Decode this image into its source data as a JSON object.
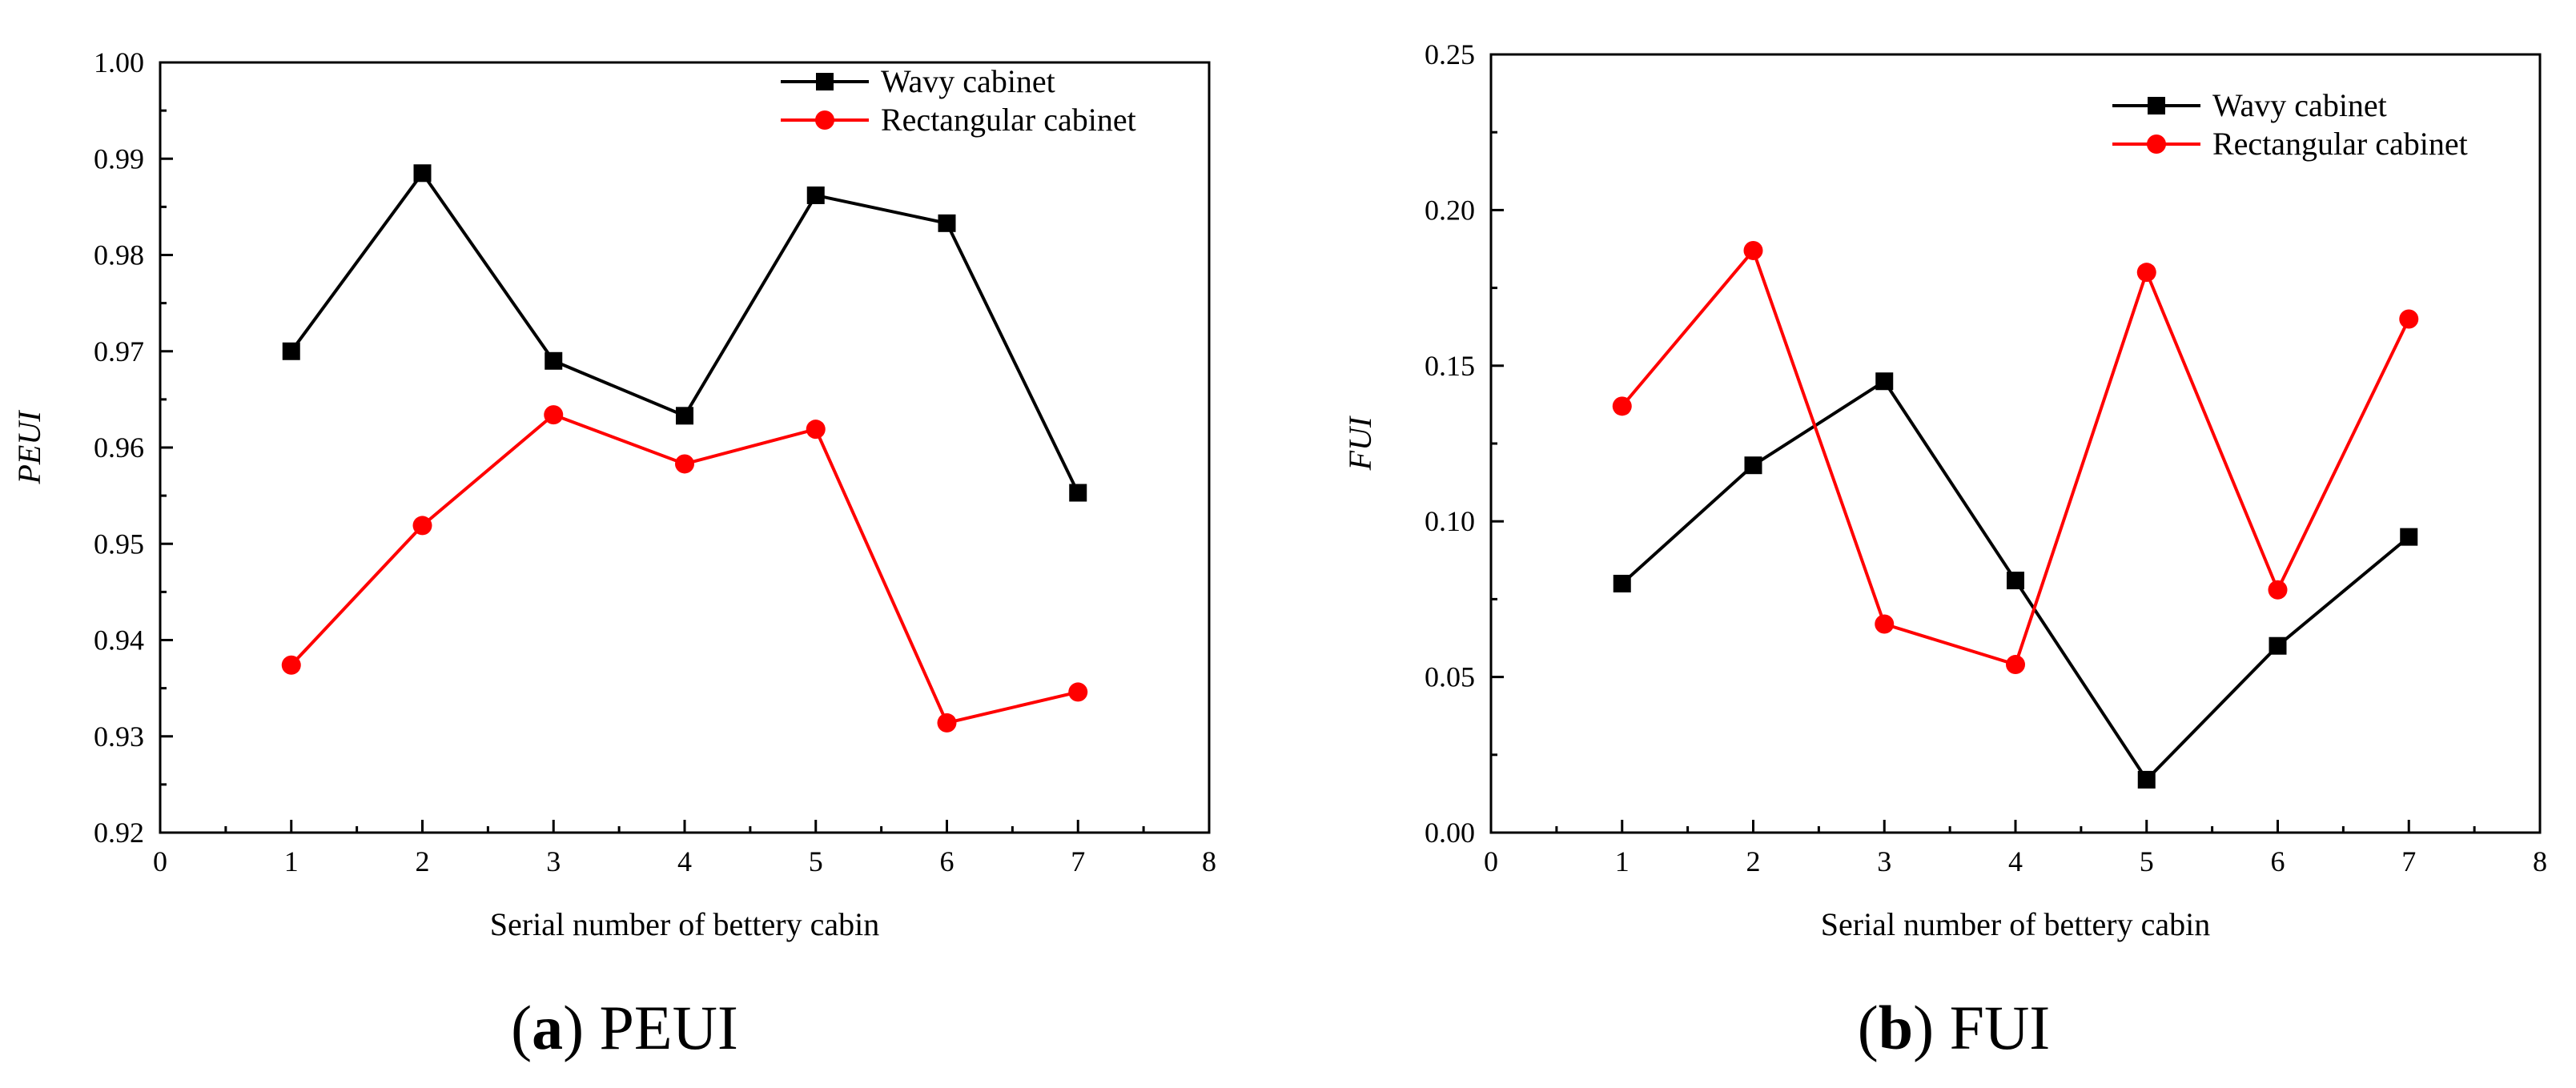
{
  "chart_data": [
    {
      "type": "line",
      "caption_letter": "a",
      "caption_text": "PEUI",
      "xlabel": "Serial number of bettery cabin",
      "ylabel": "PEUI",
      "xlim": [
        0,
        8
      ],
      "ylim": [
        0.92,
        1.0
      ],
      "x_ticks": [
        "0",
        "1",
        "2",
        "3",
        "4",
        "5",
        "6",
        "7",
        "8"
      ],
      "y_ticks": [
        "0.92",
        "0.93",
        "0.94",
        "0.95",
        "0.96",
        "0.97",
        "0.98",
        "0.99",
        "1.00"
      ],
      "legend_position": "top-right",
      "grid": false,
      "x": [
        1,
        2,
        3,
        4,
        5,
        6,
        7
      ],
      "series": [
        {
          "name": "Wavy cabinet",
          "color": "#000000",
          "marker": "square",
          "values": [
            0.97,
            0.9885,
            0.969,
            0.9633,
            0.9862,
            0.9833,
            0.9553
          ]
        },
        {
          "name": "Rectangular cabinet",
          "color": "#ff0000",
          "marker": "circle",
          "values": [
            0.9374,
            0.9519,
            0.9634,
            0.9583,
            0.9619,
            0.9314,
            0.9346
          ]
        }
      ]
    },
    {
      "type": "line",
      "caption_letter": "b",
      "caption_text": "FUI",
      "xlabel": "Serial number of bettery cabin",
      "ylabel": "FUI",
      "xlim": [
        0,
        8
      ],
      "ylim": [
        0.0,
        0.25
      ],
      "x_ticks": [
        "0",
        "1",
        "2",
        "3",
        "4",
        "5",
        "6",
        "7",
        "8"
      ],
      "y_ticks": [
        "0.00",
        "0.05",
        "0.10",
        "0.15",
        "0.20",
        "0.25"
      ],
      "legend_position": "top-right",
      "grid": false,
      "x": [
        1,
        2,
        3,
        4,
        5,
        6,
        7
      ],
      "series": [
        {
          "name": "Wavy cabinet",
          "color": "#000000",
          "marker": "square",
          "values": [
            0.08,
            0.118,
            0.145,
            0.081,
            0.017,
            0.06,
            0.095
          ]
        },
        {
          "name": "Rectangular cabinet",
          "color": "#ff0000",
          "marker": "circle",
          "values": [
            0.137,
            0.187,
            0.067,
            0.054,
            0.18,
            0.078,
            0.165
          ]
        }
      ]
    }
  ]
}
